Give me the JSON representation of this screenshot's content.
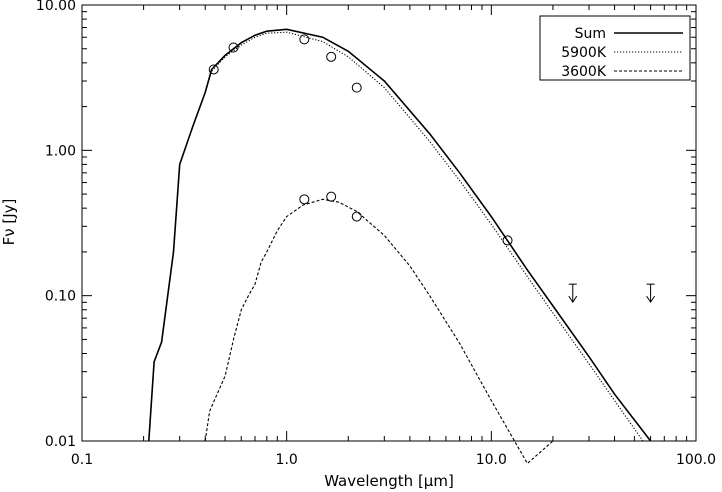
{
  "chart_data": {
    "type": "line",
    "xlabel": "Wavelength [μm]",
    "ylabel": "Fν [Jy]",
    "x_scale": "log",
    "y_scale": "log",
    "xlim": [
      0.1,
      100.0
    ],
    "ylim": [
      0.01,
      10.0
    ],
    "x_ticks": [
      {
        "value": 0.1,
        "label": "0.1"
      },
      {
        "value": 1.0,
        "label": "1.0"
      },
      {
        "value": 10.0,
        "label": "10.0"
      },
      {
        "value": 100.0,
        "label": "100.0"
      }
    ],
    "y_ticks": [
      {
        "value": 0.01,
        "label": "0.01"
      },
      {
        "value": 0.1,
        "label": "0.10"
      },
      {
        "value": 1.0,
        "label": "1.00"
      },
      {
        "value": 10.0,
        "label": "10.00"
      }
    ],
    "grid": false,
    "legend_position": "top-right",
    "series": [
      {
        "name": "Sum",
        "style": "solid",
        "points": [
          [
            0.212,
            0.01
          ],
          [
            0.225,
            0.035
          ],
          [
            0.245,
            0.048
          ],
          [
            0.28,
            0.2
          ],
          [
            0.3,
            0.8
          ],
          [
            0.35,
            1.5
          ],
          [
            0.4,
            2.5
          ],
          [
            0.43,
            3.6
          ],
          [
            0.5,
            4.5
          ],
          [
            0.6,
            5.5
          ],
          [
            0.7,
            6.2
          ],
          [
            0.8,
            6.6
          ],
          [
            1.0,
            6.8
          ],
          [
            1.5,
            6.0
          ],
          [
            2.0,
            4.8
          ],
          [
            3.0,
            3.0
          ],
          [
            5.0,
            1.3
          ],
          [
            7.0,
            0.7
          ],
          [
            10.0,
            0.35
          ],
          [
            15.0,
            0.15
          ],
          [
            20.0,
            0.085
          ],
          [
            30.0,
            0.038
          ],
          [
            40.0,
            0.021
          ],
          [
            60.0,
            0.01
          ]
        ]
      },
      {
        "name": "5900K",
        "style": "dotted",
        "points": [
          [
            0.212,
            0.01
          ],
          [
            0.225,
            0.035
          ],
          [
            0.245,
            0.048
          ],
          [
            0.28,
            0.2
          ],
          [
            0.3,
            0.8
          ],
          [
            0.35,
            1.5
          ],
          [
            0.4,
            2.5
          ],
          [
            0.43,
            3.5
          ],
          [
            0.5,
            4.4
          ],
          [
            0.6,
            5.3
          ],
          [
            0.7,
            6.0
          ],
          [
            0.8,
            6.4
          ],
          [
            1.0,
            6.5
          ],
          [
            1.5,
            5.6
          ],
          [
            2.0,
            4.4
          ],
          [
            3.0,
            2.7
          ],
          [
            5.0,
            1.15
          ],
          [
            7.0,
            0.62
          ],
          [
            10.0,
            0.31
          ],
          [
            15.0,
            0.135
          ],
          [
            20.0,
            0.076
          ],
          [
            30.0,
            0.034
          ],
          [
            40.0,
            0.019
          ],
          [
            55.0,
            0.01
          ]
        ]
      },
      {
        "name": "3600K",
        "style": "dashed",
        "points": [
          [
            0.4,
            0.01
          ],
          [
            0.42,
            0.016
          ],
          [
            0.45,
            0.02
          ],
          [
            0.5,
            0.028
          ],
          [
            0.55,
            0.05
          ],
          [
            0.6,
            0.08
          ],
          [
            0.65,
            0.1
          ],
          [
            0.7,
            0.12
          ],
          [
            0.75,
            0.17
          ],
          [
            0.8,
            0.2
          ],
          [
            0.9,
            0.28
          ],
          [
            1.0,
            0.35
          ],
          [
            1.2,
            0.42
          ],
          [
            1.5,
            0.46
          ],
          [
            1.8,
            0.44
          ],
          [
            2.2,
            0.38
          ],
          [
            3.0,
            0.26
          ],
          [
            4.0,
            0.16
          ],
          [
            5.0,
            0.1
          ],
          [
            7.0,
            0.047
          ],
          [
            10.0,
            0.019
          ],
          [
            15.0,
            0.007
          ],
          [
            20.0,
            0.01
          ]
        ]
      }
    ],
    "observations": [
      {
        "x": 0.44,
        "y": 3.6
      },
      {
        "x": 0.55,
        "y": 5.1
      },
      {
        "x": 1.22,
        "y": 5.8
      },
      {
        "x": 1.65,
        "y": 4.4
      },
      {
        "x": 2.2,
        "y": 2.7
      },
      {
        "x": 1.22,
        "y": 0.46
      },
      {
        "x": 1.65,
        "y": 0.48
      },
      {
        "x": 2.2,
        "y": 0.35
      },
      {
        "x": 12.0,
        "y": 0.24
      }
    ],
    "upper_limits": [
      {
        "x": 25.0,
        "y": 0.12
      },
      {
        "x": 60.0,
        "y": 0.12
      }
    ]
  }
}
